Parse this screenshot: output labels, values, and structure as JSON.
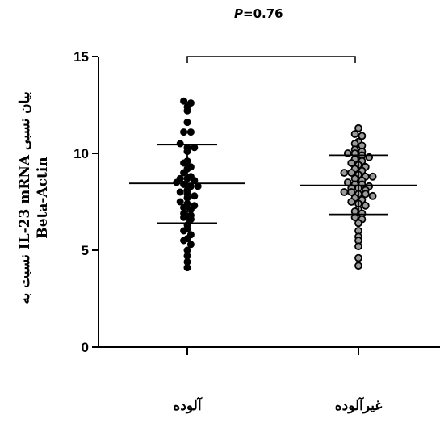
{
  "annotation": {
    "p_label": "P",
    "p_value": "=0.76"
  },
  "chart_data": {
    "type": "scatter",
    "ylabel_line1": "نسبت به IL-23 mRNA بیان نسبی",
    "ylabel_line2": "Beta-Actin",
    "ylim": [
      0,
      15
    ],
    "yticks": [
      "0",
      "5",
      "10",
      "15"
    ],
    "categories": [
      "آلوده",
      "غیرآلوده"
    ],
    "groups": [
      {
        "name": "آلوده",
        "marker": "filled",
        "mean": 8.45,
        "sd_upper": 10.45,
        "sd_lower": 6.4,
        "values": [
          12.7,
          12.6,
          12.4,
          12.2,
          11.6,
          11.1,
          11.1,
          10.5,
          10.3,
          10.3,
          10.1,
          9.6,
          9.5,
          9.3,
          9.2,
          9.0,
          8.8,
          8.7,
          8.7,
          8.6,
          8.5,
          8.4,
          8.3,
          8.3,
          8.1,
          8.0,
          7.9,
          7.8,
          7.7,
          7.5,
          7.4,
          7.3,
          7.2,
          7.1,
          6.9,
          6.8,
          6.7,
          6.6,
          6.3,
          6.1,
          6.0,
          5.8,
          5.6,
          5.5,
          5.3,
          5.0,
          4.7,
          4.4,
          4.1
        ]
      },
      {
        "name": "غیرآلوده",
        "marker": "open",
        "mean": 8.35,
        "sd_upper": 9.9,
        "sd_lower": 6.85,
        "values": [
          11.3,
          11.0,
          10.9,
          10.6,
          10.5,
          10.4,
          10.2,
          10.1,
          10.0,
          10.0,
          9.9,
          9.8,
          9.7,
          9.6,
          9.5,
          9.4,
          9.3,
          9.2,
          9.1,
          9.0,
          9.0,
          8.9,
          8.8,
          8.8,
          8.7,
          8.6,
          8.5,
          8.4,
          8.4,
          8.3,
          8.2,
          8.2,
          8.1,
          8.0,
          8.0,
          7.9,
          7.9,
          7.8,
          7.7,
          7.6,
          7.5,
          7.4,
          7.3,
          7.1,
          7.0,
          6.9,
          6.7,
          6.6,
          6.4,
          6.0,
          5.7,
          5.5,
          5.2,
          4.6,
          4.2
        ]
      }
    ]
  }
}
